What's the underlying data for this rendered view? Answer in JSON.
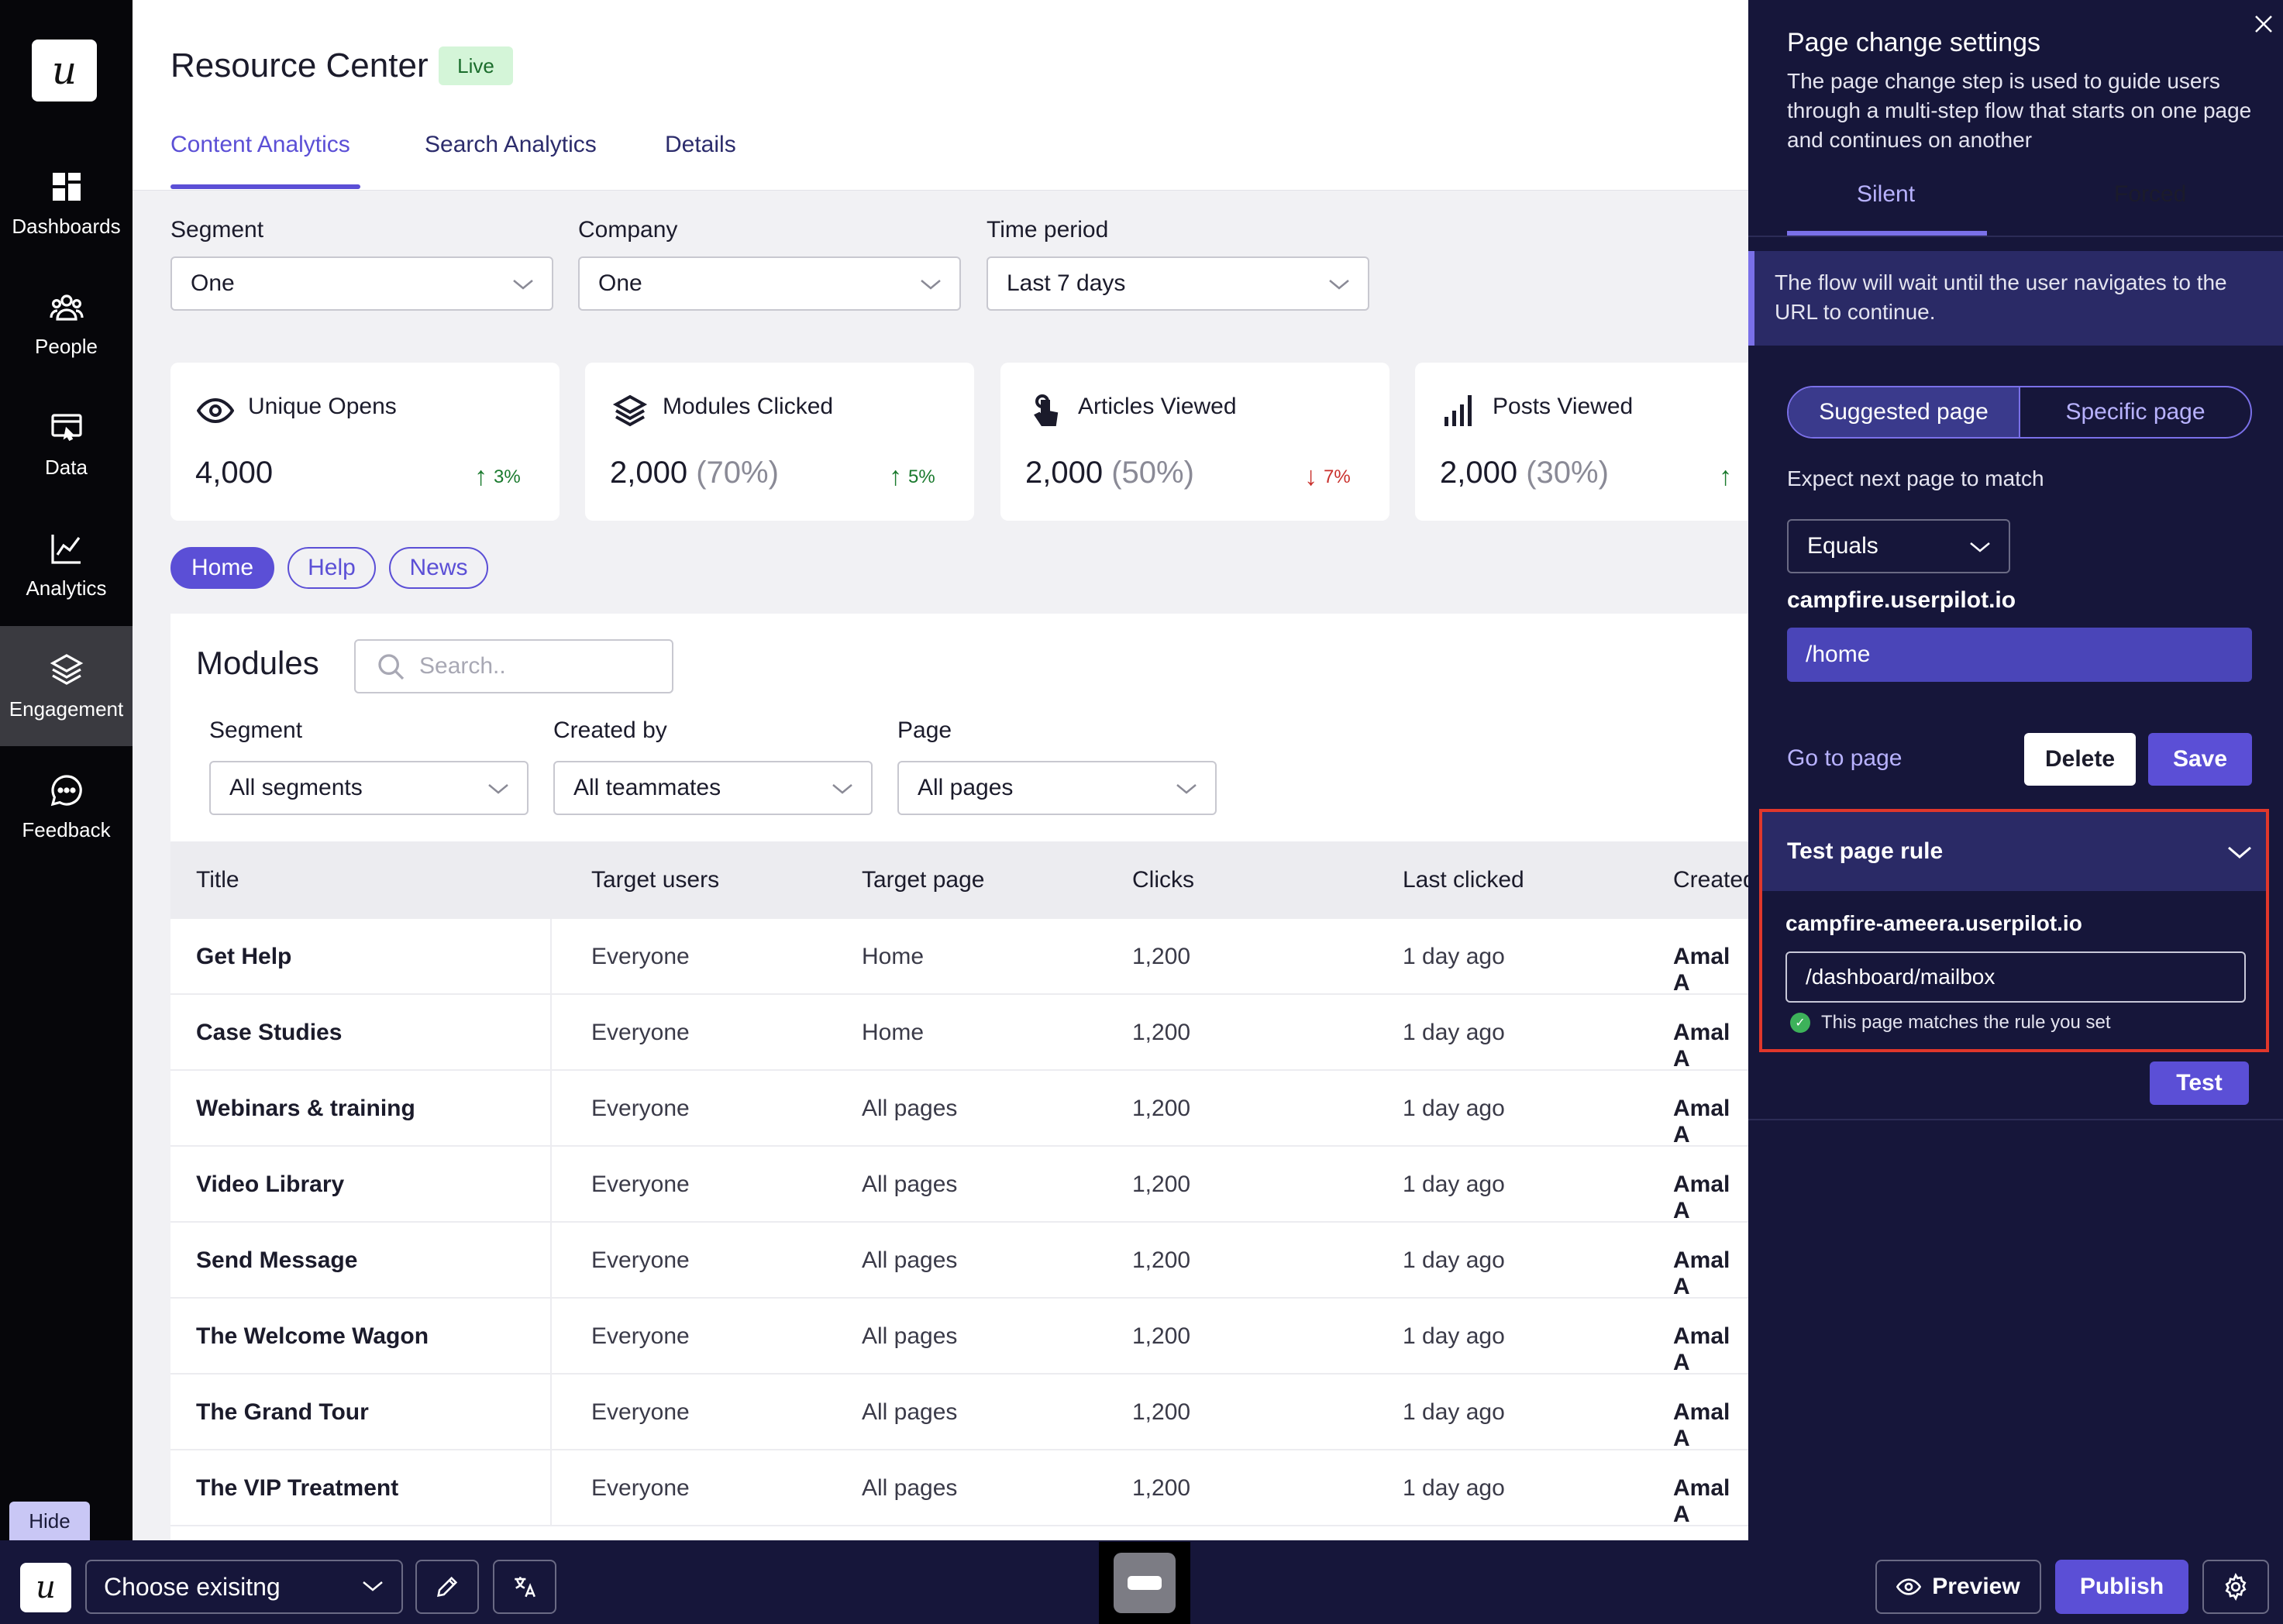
{
  "app": {
    "logo_letter": "u"
  },
  "sidebar": {
    "items": [
      {
        "label": "Dashboards",
        "icon": "dashboard-icon"
      },
      {
        "label": "People",
        "icon": "people-icon"
      },
      {
        "label": "Data",
        "icon": "data-icon"
      },
      {
        "label": "Analytics",
        "icon": "analytics-icon"
      },
      {
        "label": "Engagement",
        "icon": "layers-icon",
        "active": true
      },
      {
        "label": "Feedback",
        "icon": "chat-icon"
      }
    ],
    "hide_label": "Hide"
  },
  "header": {
    "title": "Resource Center",
    "status": "Live",
    "tabs": [
      "Content Analytics",
      "Search Analytics",
      "Details"
    ],
    "active_tab": "Content Analytics"
  },
  "filters": {
    "segment": {
      "label": "Segment",
      "value": "One"
    },
    "company": {
      "label": "Company",
      "value": "One"
    },
    "time_period": {
      "label": "Time period",
      "value": "Last 7 days"
    }
  },
  "stats": [
    {
      "title": "Unique Opens",
      "icon": "eye-icon",
      "value": "4,000",
      "pct": "",
      "change": "3%",
      "direction": "up"
    },
    {
      "title": "Modules Clicked",
      "icon": "layers-icon",
      "value": "2,000",
      "pct": "(70%)",
      "change": "5%",
      "direction": "up"
    },
    {
      "title": "Articles Viewed",
      "icon": "tap-icon",
      "value": "2,000",
      "pct": "(50%)",
      "change": "7%",
      "direction": "down"
    },
    {
      "title": "Posts Viewed",
      "icon": "signal-bars-icon",
      "value": "2,000",
      "pct": "(30%)",
      "change": "",
      "direction": "up"
    }
  ],
  "pills": [
    "Home",
    "Help",
    "News"
  ],
  "modules": {
    "title": "Modules",
    "search_placeholder": "Search..",
    "filters": {
      "segment": {
        "label": "Segment",
        "value": "All segments"
      },
      "created_by": {
        "label": "Created by",
        "value": "All teammates"
      },
      "page": {
        "label": "Page",
        "value": "All pages"
      }
    },
    "columns": [
      "Title",
      "Target users",
      "Target page",
      "Clicks",
      "Last clicked",
      "Created"
    ],
    "rows": [
      {
        "title": "Get Help",
        "users": "Everyone",
        "page": "Home",
        "clicks": "1,200",
        "last": "1 day ago",
        "creator": "Amal A"
      },
      {
        "title": "Case Studies",
        "users": "Everyone",
        "page": "Home",
        "clicks": "1,200",
        "last": "1 day ago",
        "creator": "Amal A"
      },
      {
        "title": "Webinars & training",
        "users": "Everyone",
        "page": "All pages",
        "clicks": "1,200",
        "last": "1 day ago",
        "creator": "Amal A"
      },
      {
        "title": "Video Library",
        "users": "Everyone",
        "page": "All pages",
        "clicks": "1,200",
        "last": "1 day ago",
        "creator": "Amal A"
      },
      {
        "title": "Send Message",
        "users": "Everyone",
        "page": "All pages",
        "clicks": "1,200",
        "last": "1 day ago",
        "creator": "Amal A"
      },
      {
        "title": "The Welcome Wagon",
        "users": "Everyone",
        "page": "All pages",
        "clicks": "1,200",
        "last": "1 day ago",
        "creator": "Amal A"
      },
      {
        "title": "The Grand Tour",
        "users": "Everyone",
        "page": "All pages",
        "clicks": "1,200",
        "last": "1 day ago",
        "creator": "Amal A"
      },
      {
        "title": "The VIP Treatment",
        "users": "Everyone",
        "page": "All pages",
        "clicks": "1,200",
        "last": "1 day ago",
        "creator": "Amal A"
      }
    ]
  },
  "settings_panel": {
    "title": "Page change settings",
    "description": "The page change step is used to guide users through a multi-step flow that starts on one page and continues on another",
    "tabs": [
      "Silent",
      "Forced"
    ],
    "active_tab": "Silent",
    "info": "The flow will wait until the user navigates to the URL to continue.",
    "segment": [
      "Suggested page",
      "Specific page"
    ],
    "match_label": "Expect next page to match",
    "match_operator": "Equals",
    "domain": "campfire.userpilot.io",
    "path": "/home",
    "go_to_page": "Go to page",
    "delete_label": "Delete",
    "save_label": "Save",
    "test": {
      "title": "Test page rule",
      "domain": "campfire-ameera.userpilot.io",
      "path": "/dashboard/mailbox",
      "result": "This page matches the rule you set",
      "button": "Test"
    }
  },
  "bottombar": {
    "select_value": "Choose exisitng",
    "preview_label": "Preview",
    "publish_label": "Publish"
  },
  "colors": {
    "accent": "#5b4fd6",
    "panel": "#16163a",
    "sidebar": "#06060a",
    "highlight": "#e0372b"
  }
}
